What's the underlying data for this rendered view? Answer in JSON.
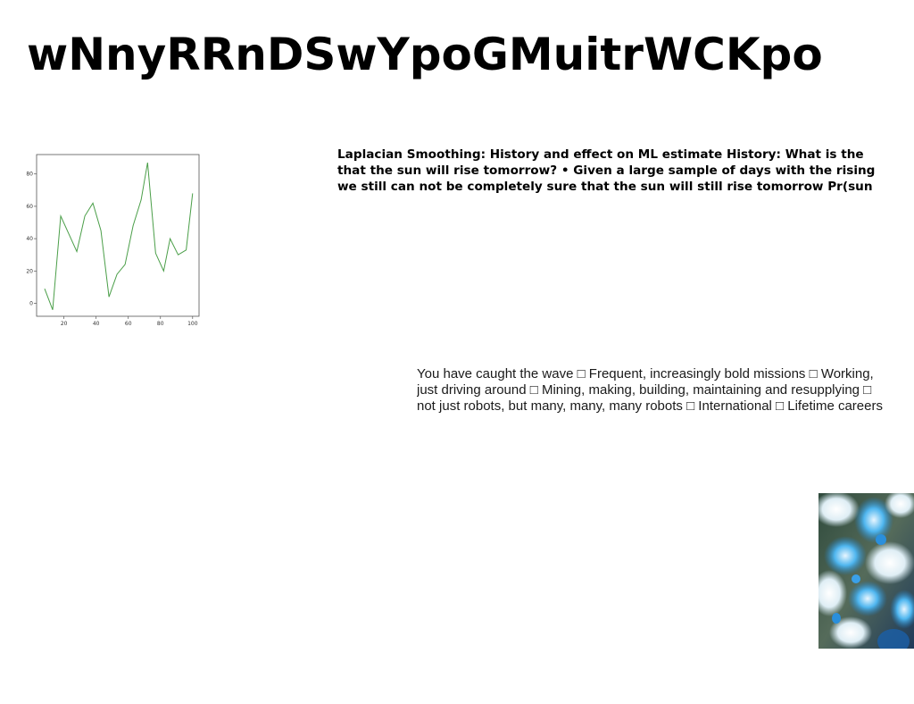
{
  "slide": {
    "title": "wNnyRRnDSwYpoGMuitrWCKpo",
    "paragraph1": [
      "Laplacian Smoothing: History and effect on ML estimate History: What is the",
      "that the sun will rise tomorrow? • Given a large sample of days with the rising",
      "we still can not be completely sure that the sun will still rise tomorrow Pr(sun"
    ],
    "paragraph2": [
      "You have caught the wave □ Frequent, increasingly bold missions □ Working,",
      "just driving around □ Mining, making, building, maintaining and resupplying □",
      "not just robots, but many, many, many robots □ International □ Lifetime careers"
    ],
    "photo_icon": "abstract-blue-flower-image"
  },
  "chart_data": {
    "type": "line",
    "x": [
      8,
      13,
      18,
      23,
      28,
      33,
      38,
      43,
      48,
      53,
      58,
      63,
      68,
      72,
      77,
      82,
      86,
      91,
      96,
      100
    ],
    "series": [
      {
        "values": [
          9,
          -4,
          54,
          43,
          32,
          54,
          62,
          45,
          4,
          18,
          24,
          48,
          64,
          87,
          31,
          20,
          40,
          30,
          33,
          68
        ],
        "color": "#4a9e48"
      }
    ],
    "xticks": [
      20,
      40,
      60,
      80,
      100
    ],
    "yticks": [
      0,
      20,
      40,
      60,
      80
    ],
    "xlim": [
      3,
      104
    ],
    "ylim": [
      -8,
      92
    ],
    "grid": false
  }
}
